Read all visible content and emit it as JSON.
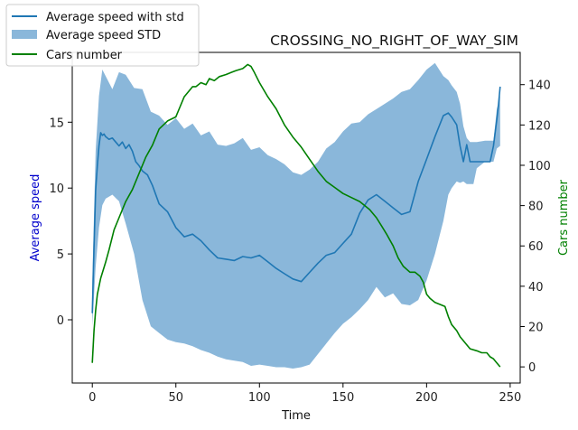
{
  "chart_data": {
    "type": "line",
    "title": "CROSSING_NO_RIGHT_OF_WAY_SIM",
    "xlabel": "Time",
    "ylabel_left": "Average speed",
    "ylabel_right": "Cars number",
    "xlim": [
      -12,
      256
    ],
    "ylim_left": [
      -4.8,
      20.3
    ],
    "ylim_right": [
      -8,
      156
    ],
    "xticks": [
      0,
      50,
      100,
      150,
      200,
      250
    ],
    "yticks_left": [
      0,
      5,
      10,
      15
    ],
    "yticks_right": [
      0,
      20,
      40,
      60,
      80,
      100,
      120,
      140
    ],
    "grid": false,
    "legend_position": "upper-left (outside, above axes)",
    "colors": {
      "speed": "#1f77b4",
      "band": "#8ab7da",
      "cars": "#008000",
      "left_label": "#0000cc",
      "right_label": "#008000"
    },
    "legend": [
      {
        "label": "Average speed with std",
        "kind": "line",
        "color": "#1f77b4"
      },
      {
        "label": "Average speed STD",
        "kind": "patch",
        "color": "#8ab7da"
      },
      {
        "label": "Cars number",
        "kind": "line",
        "color": "#008000"
      }
    ],
    "series": [
      {
        "name": "Average speed with std",
        "axis": "left",
        "x": [
          0,
          1,
          2,
          3,
          4,
          5,
          6,
          7,
          8,
          10,
          12,
          14,
          16,
          18,
          20,
          22,
          24,
          26,
          28,
          30,
          33,
          36,
          40,
          45,
          50,
          55,
          60,
          65,
          70,
          75,
          80,
          85,
          90,
          95,
          100,
          105,
          110,
          115,
          120,
          125,
          130,
          135,
          140,
          145,
          150,
          155,
          160,
          165,
          170,
          175,
          180,
          185,
          190,
          195,
          200,
          205,
          210,
          213,
          215,
          218,
          220,
          222,
          224,
          226,
          228,
          230,
          232,
          235,
          238,
          240,
          242,
          243,
          244
        ],
        "y": [
          0.5,
          5.5,
          9.8,
          11.7,
          13.2,
          14.2,
          14.0,
          14.1,
          13.9,
          13.7,
          13.8,
          13.5,
          13.2,
          13.5,
          13.0,
          13.3,
          12.8,
          12.0,
          11.7,
          11.3,
          11.0,
          10.2,
          8.8,
          8.2,
          7.0,
          6.3,
          6.5,
          6.0,
          5.3,
          4.7,
          4.6,
          4.5,
          4.8,
          4.7,
          4.9,
          4.4,
          3.9,
          3.5,
          3.1,
          2.9,
          3.6,
          4.3,
          4.9,
          5.1,
          5.8,
          6.5,
          8.1,
          9.1,
          9.5,
          9.0,
          8.5,
          8.0,
          8.2,
          10.5,
          12.2,
          13.9,
          15.5,
          15.7,
          15.4,
          14.8,
          13.2,
          12.0,
          13.3,
          12.0,
          12.0,
          12.0,
          12.0,
          12.0,
          12.0,
          13.2,
          15.2,
          16.3,
          17.7
        ]
      },
      {
        "name": "Average speed STD",
        "axis": "left",
        "x": [
          0,
          2,
          4,
          6,
          8,
          12,
          16,
          20,
          25,
          30,
          35,
          40,
          45,
          50,
          55,
          60,
          65,
          70,
          75,
          80,
          85,
          90,
          95,
          100,
          105,
          110,
          115,
          120,
          125,
          130,
          135,
          140,
          145,
          150,
          155,
          160,
          165,
          170,
          175,
          180,
          185,
          190,
          195,
          200,
          205,
          210,
          213,
          215,
          218,
          220,
          222,
          224,
          226,
          228,
          230,
          235,
          240,
          242,
          244
        ],
        "upper": [
          3.0,
          12.8,
          17.0,
          19.0,
          18.5,
          17.5,
          18.8,
          18.6,
          17.6,
          17.5,
          15.8,
          15.5,
          14.8,
          15.3,
          14.5,
          14.9,
          14.0,
          14.3,
          13.3,
          13.2,
          13.4,
          13.8,
          12.9,
          13.1,
          12.5,
          12.2,
          11.8,
          11.2,
          11.0,
          11.4,
          12.0,
          13.0,
          13.5,
          14.3,
          14.9,
          15.0,
          15.6,
          16.0,
          16.4,
          16.8,
          17.3,
          17.5,
          18.2,
          19.0,
          19.5,
          18.5,
          18.2,
          17.8,
          17.3,
          16.4,
          14.7,
          13.8,
          13.5,
          13.5,
          13.5,
          13.6,
          13.6,
          16.0,
          17.0
        ],
        "lower": [
          -0.5,
          4.0,
          7.0,
          8.7,
          9.2,
          9.5,
          9.0,
          7.3,
          5.0,
          1.5,
          -0.5,
          -1.0,
          -1.5,
          -1.7,
          -1.8,
          -2.0,
          -2.3,
          -2.5,
          -2.8,
          -3.0,
          -3.1,
          -3.2,
          -3.5,
          -3.4,
          -3.5,
          -3.6,
          -3.6,
          -3.7,
          -3.6,
          -3.4,
          -2.6,
          -1.8,
          -1.0,
          -0.3,
          0.2,
          0.8,
          1.5,
          2.5,
          1.7,
          2.0,
          1.2,
          1.1,
          1.5,
          3.0,
          5.0,
          7.5,
          9.5,
          10.0,
          10.5,
          10.4,
          10.5,
          10.3,
          10.3,
          10.3,
          11.5,
          12.0,
          12.0,
          13.0,
          13.2
        ]
      },
      {
        "name": "Cars number",
        "axis": "right",
        "x": [
          0,
          1,
          2,
          3,
          5,
          8,
          10,
          13,
          16,
          20,
          24,
          28,
          32,
          36,
          40,
          45,
          50,
          52,
          55,
          58,
          60,
          62,
          65,
          68,
          70,
          73,
          76,
          80,
          83,
          86,
          90,
          93,
          95,
          97,
          100,
          105,
          110,
          115,
          120,
          125,
          130,
          135,
          140,
          145,
          150,
          155,
          160,
          163,
          166,
          170,
          173,
          176,
          180,
          183,
          186,
          190,
          193,
          196,
          198,
          200,
          202,
          205,
          208,
          211,
          213,
          215,
          218,
          220,
          223,
          226,
          230,
          233,
          236,
          238,
          240,
          242,
          243,
          244
        ],
        "y": [
          2,
          18,
          28,
          36,
          44,
          52,
          58,
          68,
          74,
          82,
          88,
          96,
          104,
          110,
          118,
          122,
          124,
          128,
          134,
          137,
          139,
          139,
          141,
          140,
          143,
          142,
          144,
          145,
          146,
          147,
          148,
          150,
          149,
          146,
          141,
          134,
          128,
          120,
          114,
          109,
          103,
          97,
          92,
          89,
          86,
          84,
          82,
          80,
          78,
          74,
          70,
          66,
          60,
          54,
          50,
          47,
          47,
          45,
          42,
          36,
          34,
          32,
          31,
          30,
          25,
          21,
          18,
          15,
          12,
          9,
          8,
          7,
          7,
          5,
          4,
          2,
          1,
          0
        ]
      }
    ]
  }
}
